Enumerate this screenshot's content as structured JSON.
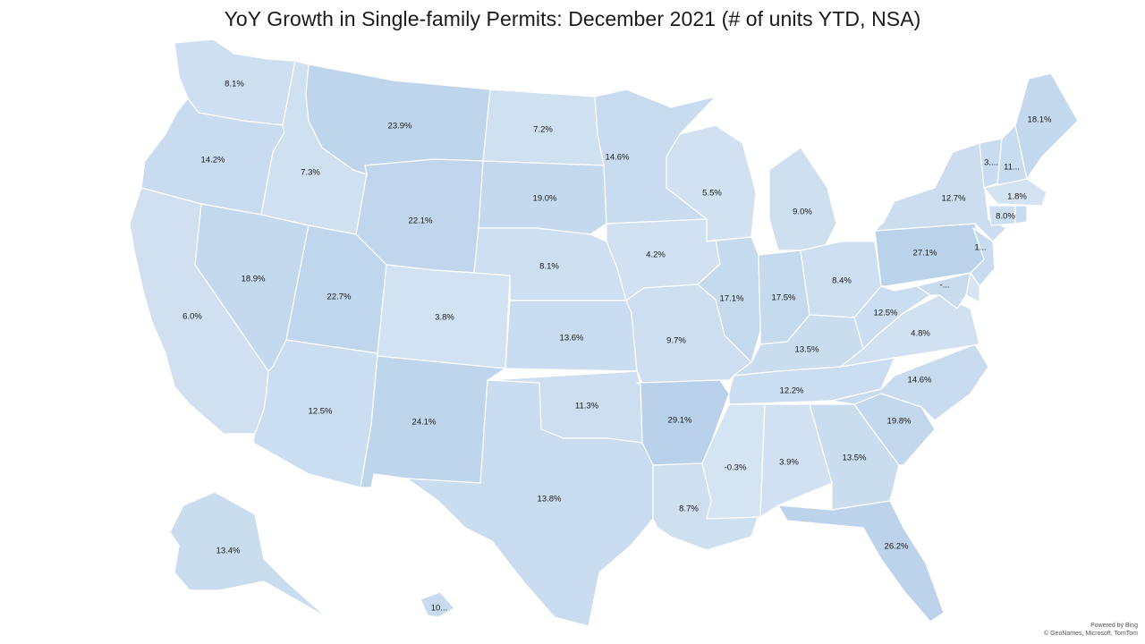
{
  "title": "YoY Growth in Single-family Permits: December 2021 (# of units YTD, NSA)",
  "attribution": {
    "powered_by": "Powered by Bing",
    "copyright": "© GeoNames, Microsoft, TomTom"
  },
  "colors": {
    "low": "#d6e4f3",
    "mid": "#c9dcef",
    "high": "#b8d0ea",
    "border": "#ffffff",
    "background": "#ffffff"
  },
  "states": [
    {
      "id": "WA",
      "value": 8.1,
      "label": "8.1%"
    },
    {
      "id": "OR",
      "value": 14.2,
      "label": "14.2%"
    },
    {
      "id": "CA",
      "value": 6.0,
      "label": "6.0%"
    },
    {
      "id": "ID",
      "value": 7.3,
      "label": "7.3%"
    },
    {
      "id": "NV",
      "value": 18.9,
      "label": "18.9%"
    },
    {
      "id": "MT",
      "value": 23.9,
      "label": "23.9%"
    },
    {
      "id": "WY",
      "value": 22.1,
      "label": "22.1%"
    },
    {
      "id": "UT",
      "value": 22.7,
      "label": "22.7%"
    },
    {
      "id": "AZ",
      "value": 12.5,
      "label": "12.5%"
    },
    {
      "id": "CO",
      "value": 3.8,
      "label": "3.8%"
    },
    {
      "id": "NM",
      "value": 24.1,
      "label": "24.1%"
    },
    {
      "id": "ND",
      "value": 7.2,
      "label": "7.2%"
    },
    {
      "id": "SD",
      "value": 19.0,
      "label": "19.0%"
    },
    {
      "id": "NE",
      "value": 8.1,
      "label": "8.1%"
    },
    {
      "id": "KS",
      "value": 13.6,
      "label": "13.6%"
    },
    {
      "id": "OK",
      "value": 11.3,
      "label": "11.3%"
    },
    {
      "id": "TX",
      "value": 13.8,
      "label": "13.8%"
    },
    {
      "id": "MN",
      "value": 14.6,
      "label": "14.6%"
    },
    {
      "id": "IA",
      "value": 4.2,
      "label": "4.2%"
    },
    {
      "id": "MO",
      "value": 9.7,
      "label": "9.7%"
    },
    {
      "id": "AR",
      "value": 29.1,
      "label": "29.1%"
    },
    {
      "id": "LA",
      "value": 8.7,
      "label": "8.7%"
    },
    {
      "id": "WI",
      "value": 5.5,
      "label": "5.5%"
    },
    {
      "id": "IL",
      "value": 17.1,
      "label": "17.1%"
    },
    {
      "id": "MI",
      "value": 9.0,
      "label": "9.0%"
    },
    {
      "id": "IN",
      "value": 17.5,
      "label": "17.5%"
    },
    {
      "id": "OH",
      "value": 8.4,
      "label": "8.4%"
    },
    {
      "id": "KY",
      "value": 13.5,
      "label": "13.5%"
    },
    {
      "id": "TN",
      "value": 12.2,
      "label": "12.2%"
    },
    {
      "id": "MS",
      "value": -0.3,
      "label": "-0.3%"
    },
    {
      "id": "AL",
      "value": 3.9,
      "label": "3.9%"
    },
    {
      "id": "GA",
      "value": 13.5,
      "label": "13.5%"
    },
    {
      "id": "FL",
      "value": 26.2,
      "label": "26.2%"
    },
    {
      "id": "SC",
      "value": 19.8,
      "label": "19.8%"
    },
    {
      "id": "NC",
      "value": 14.6,
      "label": "14.6%"
    },
    {
      "id": "VA",
      "value": 4.8,
      "label": "4.8%"
    },
    {
      "id": "WV",
      "value": 12.5,
      "label": "12.5%"
    },
    {
      "id": "PA",
      "value": 27.1,
      "label": "27.1%"
    },
    {
      "id": "NY",
      "value": 12.7,
      "label": "12.7%"
    },
    {
      "id": "VT",
      "label": "3...."
    },
    {
      "id": "NH",
      "label": "11..."
    },
    {
      "id": "ME",
      "value": 18.1,
      "label": "18.1%"
    },
    {
      "id": "MA",
      "value": 1.8,
      "label": "1.8%"
    },
    {
      "id": "CT",
      "value": 8.0,
      "label": "8.0%"
    },
    {
      "id": "NJ",
      "label": "1..."
    },
    {
      "id": "MD",
      "label": "-..."
    },
    {
      "id": "AK",
      "value": 13.4,
      "label": "13.4%"
    },
    {
      "id": "HI",
      "label": "10..."
    }
  ]
}
